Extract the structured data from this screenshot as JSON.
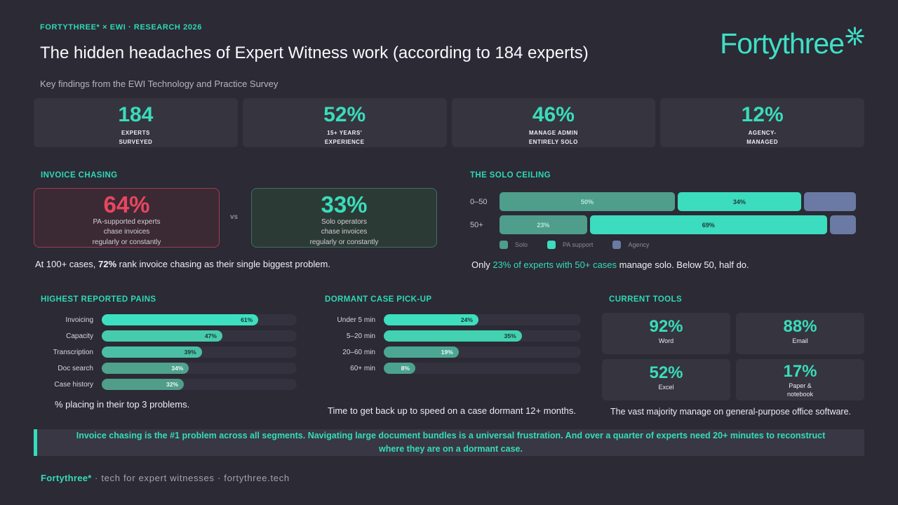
{
  "colors": {
    "background": "#2b2a35",
    "card": "#35343f",
    "accent_teal": "#35dcba",
    "solo_teal": "#4e9e8b",
    "pa_teal": "#3cdcbe",
    "agency_slate": "#6b7aa4",
    "alert_red": "#e8465f",
    "track": "#35323f"
  },
  "header": {
    "eyebrow": "FORTYTHREE* × EWI · RESEARCH 2026",
    "title": "The hidden headaches of Expert Witness work (according to 184 experts)",
    "subtitle": "Key findings from the EWI Technology and Practice Survey",
    "logo_text": "Fortythree"
  },
  "stats": [
    {
      "value": "184",
      "label_lines": [
        "EXPERTS",
        "SURVEYED"
      ]
    },
    {
      "value": "52%",
      "label_lines": [
        "15+ YEARS'",
        "EXPERIENCE"
      ]
    },
    {
      "value": "46%",
      "label_lines": [
        "MANAGE ADMIN",
        "ENTIRELY SOLO"
      ]
    },
    {
      "value": "12%",
      "label_lines": [
        "AGENCY-",
        "MANAGED"
      ]
    }
  ],
  "invoice_chasing": {
    "heading": "INVOICE CHASING",
    "vs_label": "vs",
    "cards": [
      {
        "value": "64%",
        "tone": "bad",
        "lines": [
          "PA-supported experts",
          "chase invoices",
          "regularly or constantly"
        ]
      },
      {
        "value": "33%",
        "tone": "good",
        "lines": [
          "Solo operators",
          "chase invoices",
          "regularly or constantly"
        ]
      }
    ],
    "caption": {
      "prefix": "At 100+ cases, ",
      "strong": "72%",
      "suffix": " rank invoice chasing as their single biggest problem."
    }
  },
  "solo_ceiling": {
    "heading": "THE SOLO CEILING",
    "rows": [
      {
        "label": "0–50",
        "segments": [
          {
            "series": "solo",
            "value": 50,
            "display": "50%"
          },
          {
            "series": "pa",
            "value": 34,
            "display": "34%"
          },
          {
            "series": "agency",
            "value": 16,
            "display": ""
          }
        ]
      },
      {
        "label": "50+",
        "segments": [
          {
            "series": "solo",
            "value": 23,
            "display": "23%"
          },
          {
            "series": "pa",
            "value": 69,
            "display": "69%"
          },
          {
            "series": "agency",
            "value": 8,
            "display": ""
          }
        ]
      }
    ],
    "legend": [
      {
        "series": "solo",
        "label": "Solo"
      },
      {
        "series": "pa",
        "label": "PA support"
      },
      {
        "series": "agency",
        "label": "Agency"
      }
    ],
    "caption": {
      "prefix": "Only ",
      "highlight": "23% of experts with 50+ cases",
      "suffix": " manage solo. Below 50, half do."
    }
  },
  "pains": {
    "heading": "HIGHEST REPORTED PAINS",
    "scale_max": 76,
    "items": [
      {
        "label": "Invoicing",
        "value": 61,
        "display": "61%",
        "bar_color": "#3ce0c0",
        "label_color": "#1e332e"
      },
      {
        "label": "Capacity",
        "value": 47,
        "display": "47%",
        "bar_color": "#46cbad",
        "label_color": "#1e332e"
      },
      {
        "label": "Transcription",
        "value": 39,
        "display": "39%",
        "bar_color": "#4abfa5",
        "label_color": "#1e332e"
      },
      {
        "label": "Doc search",
        "value": 34,
        "display": "34%",
        "bar_color": "#4fa28e",
        "label_color": "#f0f8f5"
      },
      {
        "label": "Case history",
        "value": 32,
        "display": "32%",
        "bar_color": "#509d8a",
        "label_color": "#f0f8f5"
      }
    ],
    "caption": "% placing in their top 3 problems."
  },
  "dormant": {
    "heading": "DORMANT CASE PICK-UP",
    "scale_max": 50,
    "items": [
      {
        "label": "Under 5 min",
        "value": 24,
        "display": "24%",
        "bar_color": "#3ddfbe",
        "label_color": "#1e332e"
      },
      {
        "label": "5–20 min",
        "value": 35,
        "display": "35%",
        "bar_color": "#42d1b1",
        "label_color": "#1e332e"
      },
      {
        "label": "20–60 min",
        "value": 19,
        "display": "19%",
        "bar_color": "#4ba793",
        "label_color": "#f0f8f5"
      },
      {
        "label": "60+ min",
        "value": 8,
        "display": "8%",
        "bar_color": "#4ba28f",
        "label_color": "#f0f8f5"
      }
    ],
    "caption": "Time to get back up to speed on a case dormant 12+ months."
  },
  "tools": {
    "heading": "CURRENT TOOLS",
    "items": [
      {
        "value": "92%",
        "label_lines": [
          "Word"
        ]
      },
      {
        "value": "88%",
        "label_lines": [
          "Email"
        ]
      },
      {
        "value": "52%",
        "label_lines": [
          "Excel"
        ]
      },
      {
        "value": "17%",
        "label_lines": [
          "Paper &",
          "notebook"
        ]
      }
    ],
    "caption": "The vast majority manage on general-purpose office software."
  },
  "callout": "Invoice chasing is the #1 problem across all segments. Navigating large document bundles is a universal frustration. And over a quarter of experts need 20+ minutes to reconstruct where they are on a dormant case.",
  "footer": {
    "brand": "Fortythree*",
    "separator": "·",
    "tagline": "tech for expert witnesses",
    "url": "fortythree.tech"
  },
  "chart_data": [
    {
      "type": "bar",
      "subtype": "stacked-horizontal",
      "title": "THE SOLO CEILING",
      "categories": [
        "0–50",
        "50+"
      ],
      "series": [
        {
          "name": "Solo",
          "values": [
            50,
            23
          ]
        },
        {
          "name": "PA support",
          "values": [
            34,
            69
          ]
        },
        {
          "name": "Agency",
          "values": [
            16,
            8
          ]
        }
      ],
      "xlim": [
        0,
        100
      ],
      "units": "%",
      "legend_position": "bottom",
      "grid": false,
      "annotation": "Only 23% of experts with 50+ cases manage solo. Below 50, half do."
    },
    {
      "type": "bar",
      "subtype": "horizontal",
      "title": "HIGHEST REPORTED PAINS",
      "categories": [
        "Invoicing",
        "Capacity",
        "Transcription",
        "Doc search",
        "Case history"
      ],
      "values": [
        61,
        47,
        39,
        34,
        32
      ],
      "units": "%",
      "grid": false,
      "annotation": "% placing in their top 3 problems."
    },
    {
      "type": "bar",
      "subtype": "horizontal",
      "title": "DORMANT CASE PICK-UP",
      "categories": [
        "Under 5 min",
        "5–20 min",
        "20–60 min",
        "60+ min"
      ],
      "values": [
        24,
        35,
        19,
        8
      ],
      "units": "%",
      "grid": false,
      "annotation": "Time to get back up to speed on a case dormant 12+ months."
    },
    {
      "type": "bar",
      "subtype": "big-number-comparison",
      "title": "INVOICE CHASING",
      "categories": [
        "PA-supported experts chase invoices regularly or constantly",
        "Solo operators chase invoices regularly or constantly"
      ],
      "values": [
        64,
        33
      ],
      "units": "%",
      "annotation": "At 100+ cases, 72% rank invoice chasing as their single biggest problem."
    },
    {
      "type": "table",
      "title": "CURRENT TOOLS",
      "categories": [
        "Word",
        "Email",
        "Excel",
        "Paper & notebook"
      ],
      "values": [
        92,
        88,
        52,
        17
      ],
      "units": "%",
      "annotation": "The vast majority manage on general-purpose office software."
    }
  ]
}
